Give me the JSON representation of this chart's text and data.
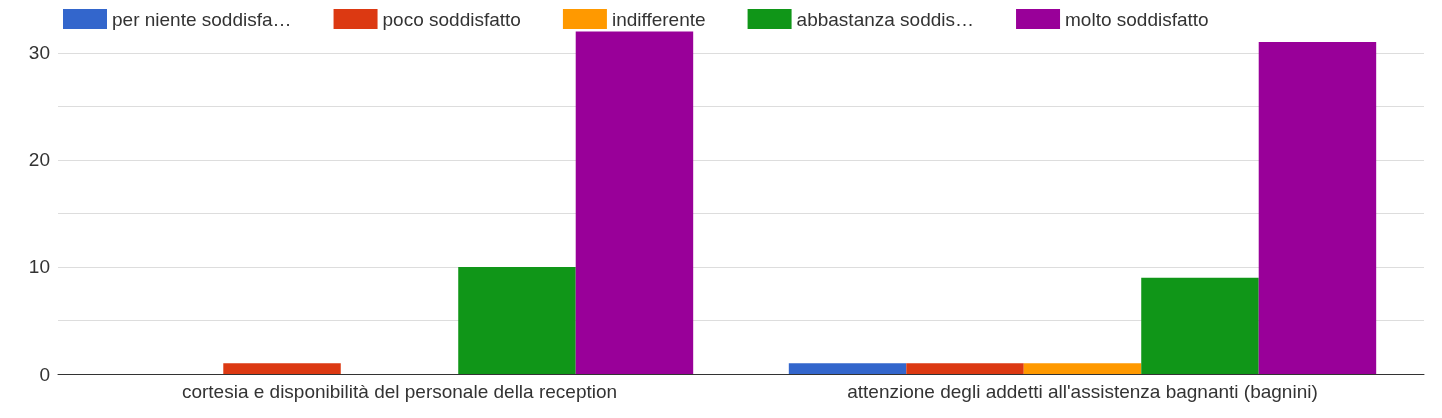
{
  "chart_data": {
    "type": "bar",
    "categories": [
      "cortesia e disponibilità del personale della reception",
      "attenzione degli addetti all'assistenza bagnanti (bagnini)"
    ],
    "series": [
      {
        "name": "per niente soddisfa…",
        "color": "#3366cc",
        "values": [
          0,
          1
        ]
      },
      {
        "name": "poco soddisfatto",
        "color": "#dc3912",
        "values": [
          1,
          1
        ]
      },
      {
        "name": "indifferente",
        "color": "#ff9900",
        "values": [
          0,
          1
        ]
      },
      {
        "name": "abbastanza soddis…",
        "color": "#109618",
        "values": [
          10,
          9
        ]
      },
      {
        "name": "molto soddisfatto",
        "color": "#990099",
        "values": [
          32,
          31
        ]
      }
    ],
    "ylim": [
      0,
      34
    ],
    "yticks": [
      0,
      {
        "value": 5,
        "label": null
      },
      10,
      {
        "value": 15,
        "label": null
      },
      20,
      {
        "value": 25,
        "label": null
      },
      30
    ],
    "grid": "y",
    "legend": "top"
  }
}
